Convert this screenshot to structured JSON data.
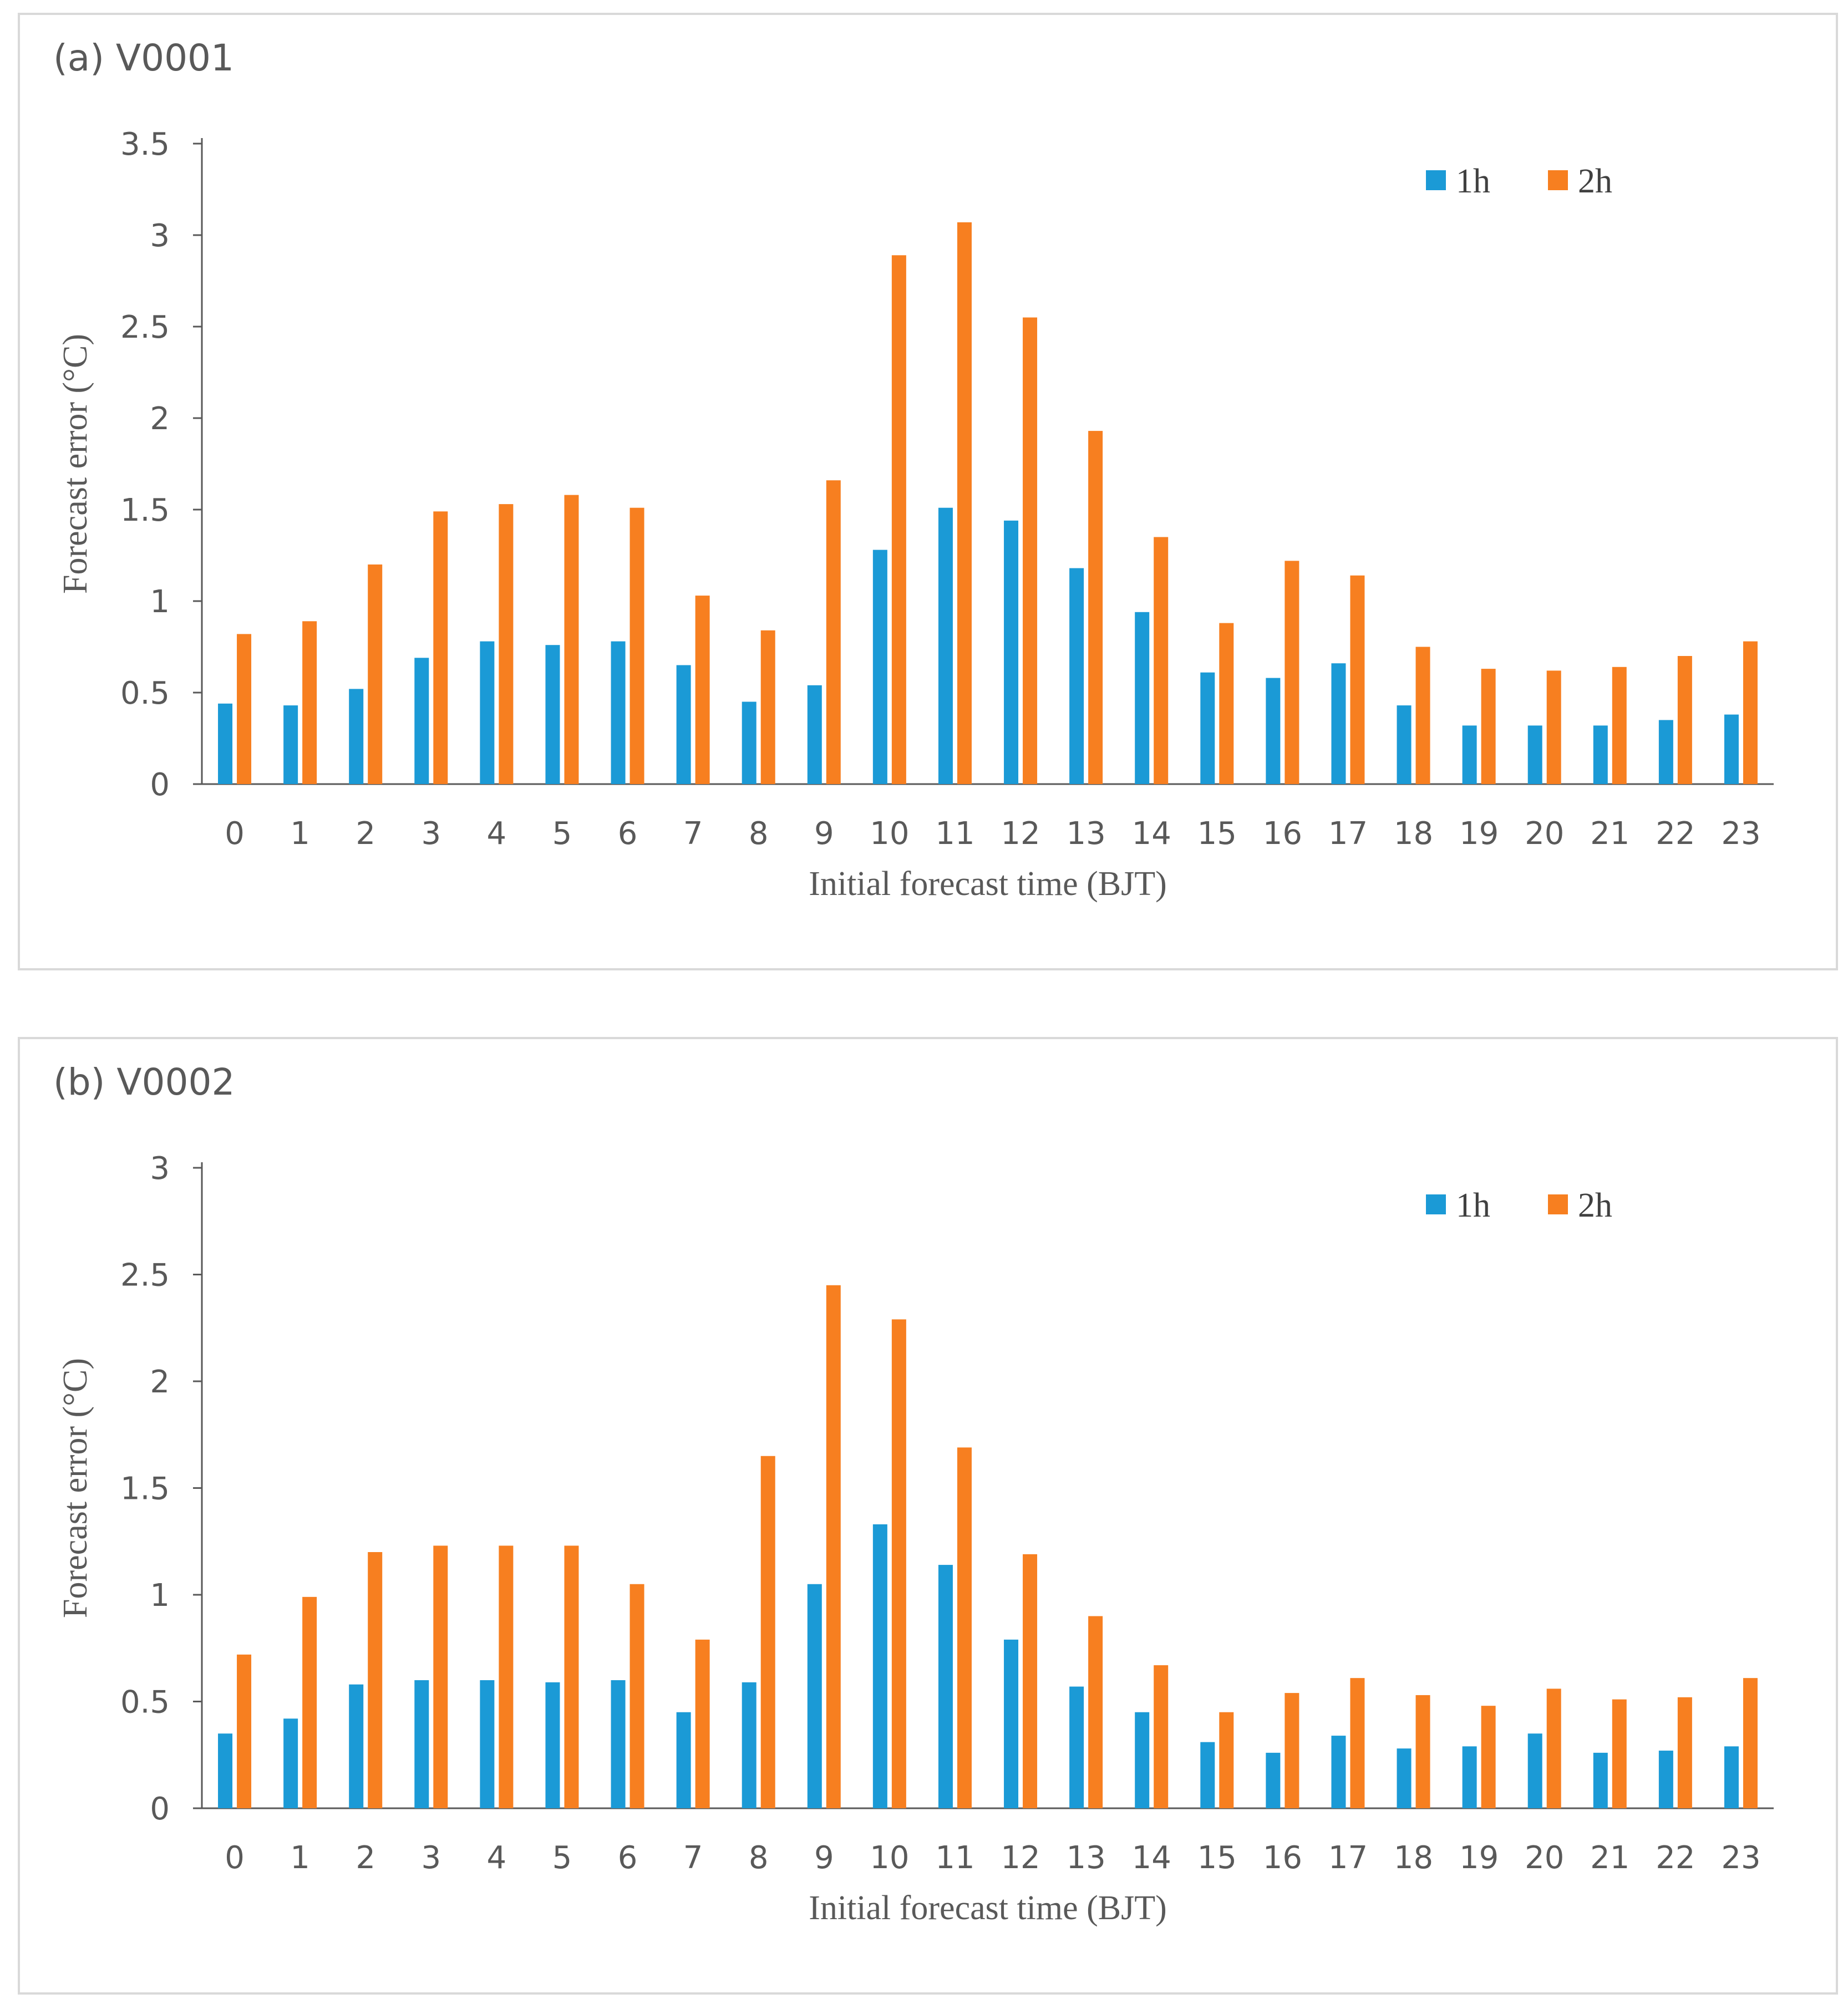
{
  "colors": {
    "series_1h": "#1B9AD6",
    "series_2h": "#F77F20"
  },
  "chart_data": [
    {
      "type": "bar",
      "title": "(a) V0001",
      "xlabel": "Initial forecast time (BJT)",
      "ylabel": "Forecast error (°C)",
      "ylim": [
        0,
        3.5
      ],
      "yticks": [
        "0",
        "0.5",
        "1",
        "1.5",
        "2",
        "2.5",
        "3",
        "3.5"
      ],
      "categories": [
        "0",
        "1",
        "2",
        "3",
        "4",
        "5",
        "6",
        "7",
        "8",
        "9",
        "10",
        "11",
        "12",
        "13",
        "14",
        "15",
        "16",
        "17",
        "18",
        "19",
        "20",
        "21",
        "22",
        "23"
      ],
      "legend": "top-right",
      "series": [
        {
          "name": "1h",
          "values": [
            0.44,
            0.43,
            0.52,
            0.69,
            0.78,
            0.76,
            0.78,
            0.65,
            0.45,
            0.54,
            1.28,
            1.51,
            1.44,
            1.18,
            0.94,
            0.61,
            0.58,
            0.66,
            0.43,
            0.32,
            0.32,
            0.32,
            0.35,
            0.38
          ]
        },
        {
          "name": "2h",
          "values": [
            0.82,
            0.89,
            1.2,
            1.49,
            1.53,
            1.58,
            1.51,
            1.03,
            0.84,
            1.66,
            2.89,
            3.07,
            2.55,
            1.93,
            1.35,
            0.88,
            1.22,
            1.14,
            0.75,
            0.63,
            0.62,
            0.64,
            0.7,
            0.78
          ]
        }
      ]
    },
    {
      "type": "bar",
      "title": "(b) V0002",
      "xlabel": "Initial forecast time (BJT)",
      "ylabel": "Forecast error (°C)",
      "ylim": [
        0,
        3
      ],
      "yticks": [
        "0",
        "0.5",
        "1",
        "1.5",
        "2",
        "2.5",
        "3"
      ],
      "categories": [
        "0",
        "1",
        "2",
        "3",
        "4",
        "5",
        "6",
        "7",
        "8",
        "9",
        "10",
        "11",
        "12",
        "13",
        "14",
        "15",
        "16",
        "17",
        "18",
        "19",
        "20",
        "21",
        "22",
        "23"
      ],
      "legend": "top-right",
      "series": [
        {
          "name": "1h",
          "values": [
            0.35,
            0.42,
            0.58,
            0.6,
            0.6,
            0.59,
            0.6,
            0.45,
            0.59,
            1.05,
            1.33,
            1.14,
            0.79,
            0.57,
            0.45,
            0.31,
            0.26,
            0.34,
            0.28,
            0.29,
            0.35,
            0.26,
            0.27,
            0.29
          ]
        },
        {
          "name": "2h",
          "values": [
            0.72,
            0.99,
            1.2,
            1.23,
            1.23,
            1.23,
            1.05,
            0.79,
            1.65,
            2.45,
            2.29,
            1.69,
            1.19,
            0.9,
            0.67,
            0.45,
            0.54,
            0.61,
            0.53,
            0.48,
            0.56,
            0.51,
            0.52,
            0.61
          ]
        }
      ]
    }
  ]
}
